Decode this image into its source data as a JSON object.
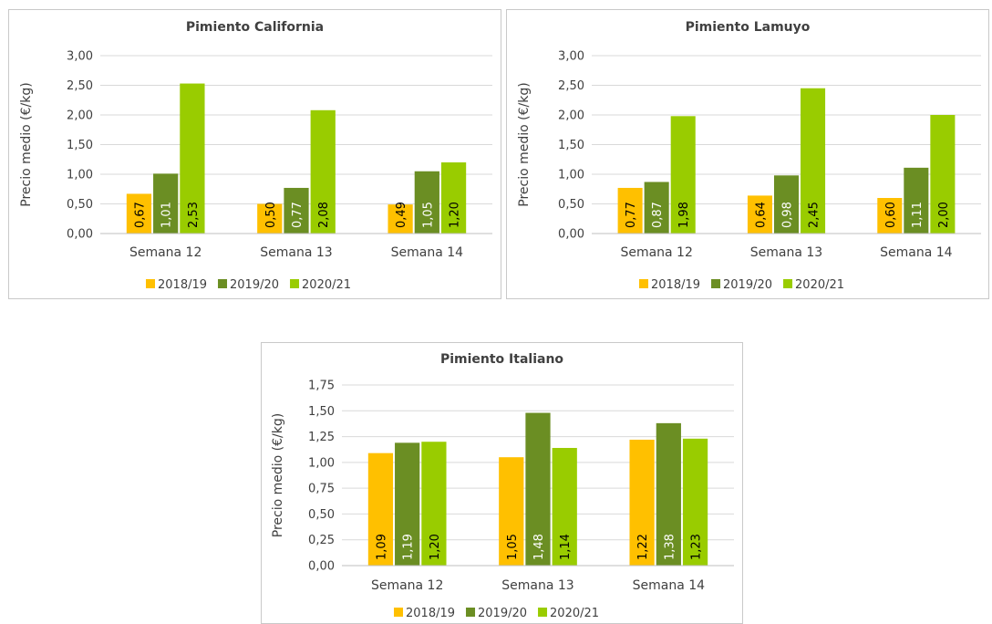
{
  "colors": {
    "2018/19": "#ffc000",
    "2019/20": "#6b8e23",
    "2020/21": "#99cc00",
    "grid": "#d9d9d9"
  },
  "chart_data": [
    {
      "type": "bar",
      "title": "Pimiento California",
      "ylabel": "Precio medio (€/kg)",
      "categories": [
        "Semana 12",
        "Semana 13",
        "Semana 14"
      ],
      "ylim": [
        0,
        3
      ],
      "yticks": [
        "0,00",
        "0,50",
        "1,00",
        "1,50",
        "2,00",
        "2,50",
        "3,00"
      ],
      "series": [
        {
          "name": "2018/19",
          "values": [
            0.67,
            0.5,
            0.49
          ],
          "labels": [
            "0,67",
            "0,50",
            "0,49"
          ]
        },
        {
          "name": "2019/20",
          "values": [
            1.01,
            0.77,
            1.05
          ],
          "labels": [
            "1,01",
            "0,77",
            "1,05"
          ]
        },
        {
          "name": "2020/21",
          "values": [
            2.53,
            2.08,
            1.2
          ],
          "labels": [
            "2,53",
            "2,08",
            "1,20"
          ]
        }
      ]
    },
    {
      "type": "bar",
      "title": "Pimiento Lamuyo",
      "ylabel": "Precio medio (€/kg)",
      "categories": [
        "Semana 12",
        "Semana 13",
        "Semana 14"
      ],
      "ylim": [
        0,
        3
      ],
      "yticks": [
        "0,00",
        "0,50",
        "1,00",
        "1,50",
        "2,00",
        "2,50",
        "3,00"
      ],
      "series": [
        {
          "name": "2018/19",
          "values": [
            0.77,
            0.64,
            0.6
          ],
          "labels": [
            "0,77",
            "0,64",
            "0,60"
          ]
        },
        {
          "name": "2019/20",
          "values": [
            0.87,
            0.98,
            1.11
          ],
          "labels": [
            "0,87",
            "0,98",
            "1,11"
          ]
        },
        {
          "name": "2020/21",
          "values": [
            1.98,
            2.45,
            2.0
          ],
          "labels": [
            "1,98",
            "2,45",
            "2,00"
          ]
        }
      ]
    },
    {
      "type": "bar",
      "title": "Pimiento Italiano",
      "ylabel": "Precio medio (€/kg)",
      "categories": [
        "Semana 12",
        "Semana 13",
        "Semana 14"
      ],
      "ylim": [
        0,
        1.75
      ],
      "yticks": [
        "0,00",
        "0,25",
        "0,50",
        "0,75",
        "1,00",
        "1,25",
        "1,50",
        "1,75"
      ],
      "series": [
        {
          "name": "2018/19",
          "values": [
            1.09,
            1.05,
            1.22
          ],
          "labels": [
            "1,09",
            "1,05",
            "1,22"
          ]
        },
        {
          "name": "2019/20",
          "values": [
            1.19,
            1.48,
            1.38
          ],
          "labels": [
            "1,19",
            "1,48",
            "1,38"
          ]
        },
        {
          "name": "2020/21",
          "values": [
            1.2,
            1.14,
            1.23
          ],
          "labels": [
            "1,20",
            "1,14",
            "1,23"
          ]
        }
      ]
    }
  ]
}
